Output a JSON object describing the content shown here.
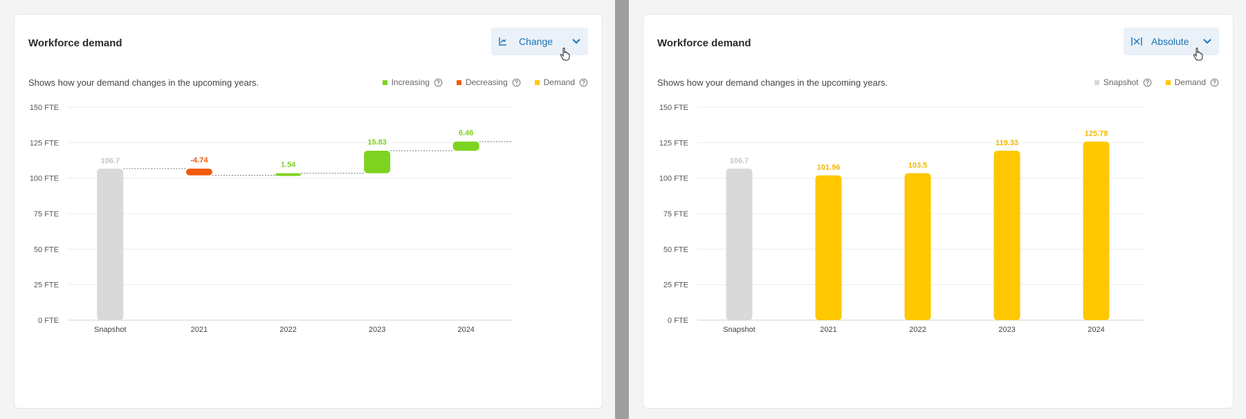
{
  "panels": [
    {
      "title": "Workforce demand",
      "subtitle": "Shows how your demand changes in the upcoming years.",
      "dropdown": {
        "label": "Change",
        "icon": "line-chart-icon"
      },
      "legend": [
        {
          "label": "Increasing",
          "color": "#7ed321"
        },
        {
          "label": "Decreasing",
          "color": "#f05a0e"
        },
        {
          "label": "Demand",
          "color": "#ffc800"
        }
      ]
    },
    {
      "title": "Workforce demand",
      "subtitle": "Shows how your demand changes in the upcoming years.",
      "dropdown": {
        "label": "Absolute",
        "icon": "absolute-range-icon"
      },
      "legend": [
        {
          "label": "Snapshot",
          "color": "#d9d9d9"
        },
        {
          "label": "Demand",
          "color": "#ffc800"
        }
      ]
    }
  ],
  "chart_data": [
    {
      "type": "bar",
      "variant": "waterfall",
      "categories": [
        "Snapshot",
        "2021",
        "2022",
        "2023",
        "2024"
      ],
      "y_ticks": [
        "0 FTE",
        "25 FTE",
        "50 FTE",
        "75 FTE",
        "100 FTE",
        "125 FTE",
        "150 FTE"
      ],
      "ylim": [
        0,
        150
      ],
      "baseline": {
        "category": "Snapshot",
        "value": 106.7,
        "label": "106.7",
        "color": "#d9d9d9"
      },
      "changes": [
        {
          "category": "2021",
          "start": 106.7,
          "value": -4.74,
          "label": "-4.74",
          "color": "#f05a0e"
        },
        {
          "category": "2022",
          "start": 101.96,
          "value": 1.54,
          "label": "1.54",
          "color": "#7ed321"
        },
        {
          "category": "2023",
          "start": 103.5,
          "value": 15.83,
          "label": "15.83",
          "color": "#7ed321"
        },
        {
          "category": "2024",
          "start": 119.33,
          "value": 6.46,
          "label": "6.46",
          "color": "#7ed321"
        }
      ],
      "grid": true
    },
    {
      "type": "bar",
      "categories": [
        "Snapshot",
        "2021",
        "2022",
        "2023",
        "2024"
      ],
      "y_ticks": [
        "0 FTE",
        "25 FTE",
        "50 FTE",
        "75 FTE",
        "100 FTE",
        "125 FTE",
        "150 FTE"
      ],
      "ylim": [
        0,
        150
      ],
      "values": [
        106.7,
        101.96,
        103.5,
        119.33,
        125.78
      ],
      "labels": [
        "106.7",
        "101.96",
        "103.5",
        "119.33",
        "125.78"
      ],
      "colors": [
        "#d9d9d9",
        "#ffc800",
        "#ffc800",
        "#ffc800",
        "#ffc800"
      ],
      "label_colors": [
        "#c8c8c8",
        "#f0b800",
        "#f0b800",
        "#f0b800",
        "#f0b800"
      ],
      "grid": true
    }
  ]
}
